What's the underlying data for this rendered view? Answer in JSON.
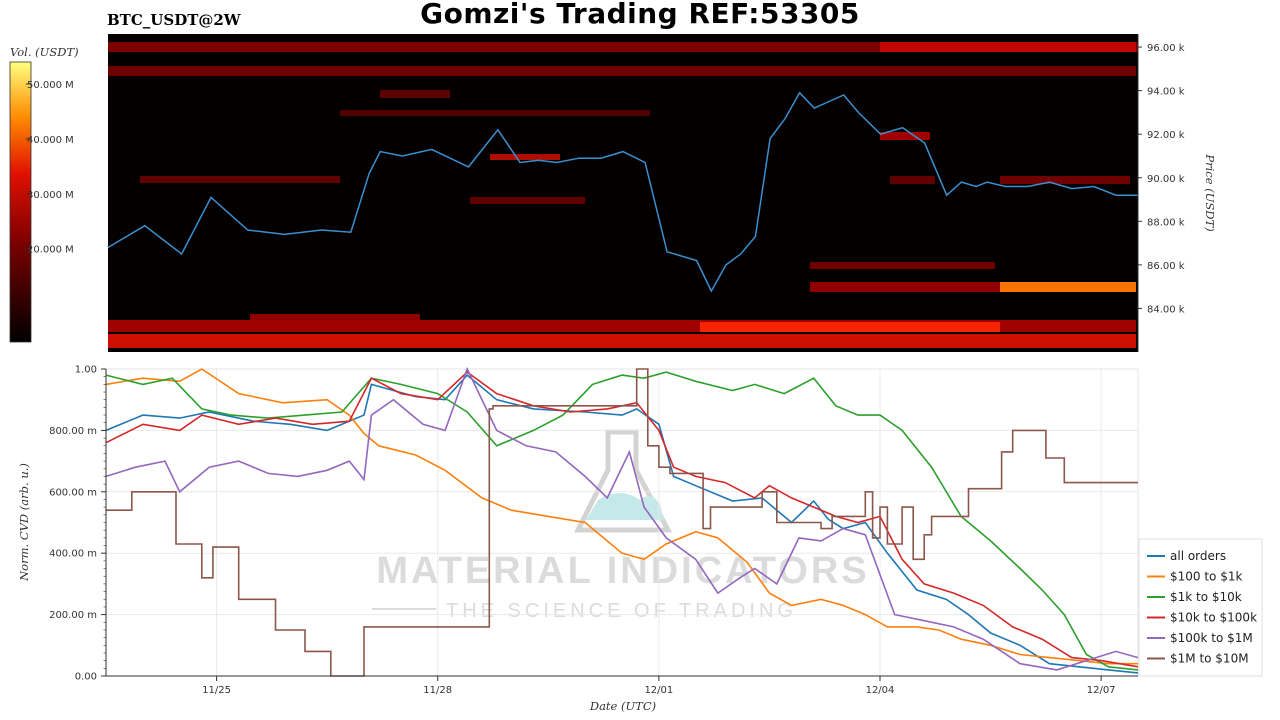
{
  "header": {
    "title": "Gomzi's Trading REF:53305",
    "subtitle": "BTC_USDT@2W"
  },
  "watermark": {
    "name": "MATERIAL INDICATORS",
    "tagline": "THE SCIENCE OF TRADING",
    "icon": "flask-icon"
  },
  "colors": {
    "all_orders": "#1f77b4",
    "r100_1k": "#ff7f0e",
    "r1k_10k": "#2ca02c",
    "r10k_100k": "#d62728",
    "r100k_1m": "#9467bd",
    "r1m_10m": "#8c564b",
    "heatmap_bg": "#050000",
    "price_line": "#3a8fd0"
  },
  "chart_data": [
    {
      "type": "heatmap",
      "title": "Gomzi's Trading REF:53305",
      "subtitle": "BTC_USDT@2W",
      "ylabel": "Price (USDT)",
      "ylim": [
        82000,
        96600
      ],
      "yticks": [
        "84.00 k",
        "86.00 k",
        "88.00 k",
        "90.00 k",
        "92.00 k",
        "94.00 k",
        "96.00 k"
      ],
      "ytick_values": [
        84000,
        86000,
        88000,
        90000,
        92000,
        94000,
        96000
      ],
      "colorbar": {
        "label": "Vol. (USDT)",
        "ticks": [
          "20.000 M",
          "30.000 M",
          "40.000 M",
          "50.000 M"
        ],
        "tick_values": [
          20,
          30,
          40,
          50
        ],
        "range": [
          3,
          54
        ]
      },
      "xlim_days": [
        0,
        14
      ],
      "price_series": {
        "name": "Price",
        "x_days": [
          0,
          0.5,
          1.0,
          1.4,
          1.9,
          2.4,
          2.9,
          3.3,
          3.55,
          3.7,
          4.0,
          4.4,
          4.9,
          5.3,
          5.6,
          5.85,
          6.1,
          6.4,
          6.7,
          7.0,
          7.3,
          7.6,
          8.0,
          8.2,
          8.4,
          8.6,
          8.8,
          9.0,
          9.2,
          9.4,
          9.6,
          9.8,
          10.0,
          10.2,
          10.5,
          10.8,
          11.1,
          11.4,
          11.6,
          11.8,
          11.95,
          12.2,
          12.5,
          12.8,
          13.1,
          13.4,
          13.7,
          14.0
        ],
        "price": [
          86800,
          87800,
          86500,
          89100,
          87600,
          87400,
          87600,
          87500,
          90200,
          91200,
          91000,
          91300,
          90500,
          92200,
          90700,
          90800,
          90700,
          90900,
          90900,
          91200,
          90700,
          86600,
          86200,
          84800,
          86000,
          86500,
          87300,
          91800,
          92700,
          93900,
          93200,
          93500,
          93800,
          93000,
          92000,
          92300,
          91600,
          89200,
          89800,
          89600,
          89800,
          89600,
          89600,
          89800,
          89500,
          89600,
          89200,
          89200
        ]
      }
    },
    {
      "type": "line",
      "xlabel": "Date (UTC)",
      "ylabel": "Norm. CVD (arb. u.)",
      "ylim": [
        0,
        1
      ],
      "xlim_days": [
        0,
        14
      ],
      "xticks": [
        "11/25",
        "11/28",
        "12/01",
        "12/04",
        "12/07"
      ],
      "xtick_days": [
        1.5,
        4.5,
        7.5,
        10.5,
        13.5
      ],
      "yticks": [
        "0.00",
        "200.00 m",
        "400.00 m",
        "600.00 m",
        "800.00 m",
        "1.00"
      ],
      "ytick_values": [
        0,
        0.2,
        0.4,
        0.6,
        0.8,
        1.0
      ],
      "legend": "right",
      "series": [
        {
          "name": "all orders",
          "color_key": "all_orders",
          "x_days": [
            0,
            0.5,
            1.0,
            1.4,
            2.0,
            2.5,
            3.0,
            3.5,
            3.6,
            4.2,
            4.6,
            4.9,
            5.3,
            5.8,
            6.5,
            7.0,
            7.2,
            7.5,
            7.7,
            8.0,
            8.5,
            8.9,
            9.3,
            9.6,
            9.8,
            10.0,
            10.3,
            10.6,
            11.0,
            11.4,
            11.7,
            12.0,
            12.4,
            12.8,
            13.2,
            13.6,
            14.0
          ],
          "values": [
            0.8,
            0.85,
            0.84,
            0.86,
            0.83,
            0.82,
            0.8,
            0.85,
            0.95,
            0.91,
            0.9,
            0.98,
            0.9,
            0.87,
            0.86,
            0.85,
            0.87,
            0.82,
            0.65,
            0.62,
            0.57,
            0.58,
            0.5,
            0.57,
            0.51,
            0.48,
            0.5,
            0.4,
            0.28,
            0.25,
            0.2,
            0.14,
            0.1,
            0.04,
            0.03,
            0.02,
            0.01
          ]
        },
        {
          "name": "$100 to $1k",
          "color_key": "r100_1k",
          "x_days": [
            0,
            0.5,
            1.0,
            1.3,
            1.8,
            2.4,
            3.0,
            3.3,
            3.5,
            3.7,
            4.2,
            4.6,
            5.1,
            5.5,
            6.0,
            6.5,
            7.0,
            7.3,
            7.6,
            8.0,
            8.3,
            8.7,
            9.0,
            9.3,
            9.7,
            10.0,
            10.3,
            10.6,
            11.0,
            11.3,
            11.6,
            12.0,
            12.4,
            12.8,
            13.2,
            13.6,
            14.0
          ],
          "values": [
            0.95,
            0.97,
            0.96,
            1.0,
            0.92,
            0.89,
            0.9,
            0.85,
            0.79,
            0.75,
            0.72,
            0.67,
            0.58,
            0.54,
            0.52,
            0.5,
            0.4,
            0.38,
            0.43,
            0.47,
            0.45,
            0.37,
            0.27,
            0.23,
            0.25,
            0.23,
            0.2,
            0.16,
            0.16,
            0.15,
            0.12,
            0.1,
            0.07,
            0.06,
            0.05,
            0.04,
            0.04
          ]
        },
        {
          "name": "$1k to $10k",
          "color_key": "r1k_10k",
          "x_days": [
            0,
            0.5,
            0.9,
            1.3,
            1.7,
            2.2,
            2.7,
            3.2,
            3.6,
            4.0,
            4.5,
            4.9,
            5.3,
            5.8,
            6.2,
            6.6,
            7.0,
            7.3,
            7.6,
            8.0,
            8.5,
            8.8,
            9.2,
            9.6,
            9.9,
            10.2,
            10.5,
            10.8,
            11.2,
            11.6,
            12.0,
            12.4,
            12.7,
            13.0,
            13.3,
            13.6,
            14.0
          ],
          "values": [
            0.98,
            0.95,
            0.97,
            0.87,
            0.85,
            0.84,
            0.85,
            0.86,
            0.97,
            0.95,
            0.92,
            0.86,
            0.75,
            0.8,
            0.85,
            0.95,
            0.98,
            0.97,
            0.99,
            0.96,
            0.93,
            0.95,
            0.92,
            0.97,
            0.88,
            0.85,
            0.85,
            0.8,
            0.68,
            0.52,
            0.44,
            0.35,
            0.28,
            0.2,
            0.07,
            0.03,
            0.02
          ]
        },
        {
          "name": "$10k to $100k",
          "color_key": "r10k_100k",
          "x_days": [
            0,
            0.5,
            1.0,
            1.3,
            1.8,
            2.3,
            2.8,
            3.3,
            3.6,
            4.0,
            4.5,
            4.9,
            5.3,
            5.8,
            6.3,
            6.8,
            7.2,
            7.5,
            7.7,
            8.0,
            8.4,
            8.8,
            9.0,
            9.3,
            9.6,
            9.9,
            10.2,
            10.5,
            10.8,
            11.1,
            11.5,
            11.9,
            12.3,
            12.7,
            13.1,
            13.5,
            14.0
          ],
          "values": [
            0.76,
            0.82,
            0.8,
            0.85,
            0.82,
            0.84,
            0.82,
            0.83,
            0.97,
            0.92,
            0.9,
            0.99,
            0.92,
            0.88,
            0.86,
            0.87,
            0.89,
            0.8,
            0.68,
            0.65,
            0.63,
            0.58,
            0.62,
            0.58,
            0.55,
            0.52,
            0.5,
            0.52,
            0.38,
            0.3,
            0.27,
            0.23,
            0.16,
            0.12,
            0.06,
            0.05,
            0.03
          ]
        },
        {
          "name": "$100k to $1M",
          "color_key": "r100k_1m",
          "x_days": [
            0,
            0.4,
            0.8,
            1.0,
            1.4,
            1.8,
            2.2,
            2.6,
            3.0,
            3.3,
            3.5,
            3.6,
            3.9,
            4.3,
            4.6,
            4.9,
            5.3,
            5.7,
            6.1,
            6.5,
            6.8,
            7.1,
            7.3,
            7.6,
            8.0,
            8.3,
            8.6,
            8.8,
            9.1,
            9.4,
            9.7,
            10.0,
            10.3,
            10.7,
            11.1,
            11.5,
            11.9,
            12.4,
            12.9,
            13.3,
            13.7,
            14.0
          ],
          "values": [
            0.65,
            0.68,
            0.7,
            0.6,
            0.68,
            0.7,
            0.66,
            0.65,
            0.67,
            0.7,
            0.64,
            0.85,
            0.9,
            0.82,
            0.8,
            1.0,
            0.8,
            0.75,
            0.73,
            0.65,
            0.58,
            0.73,
            0.55,
            0.45,
            0.38,
            0.27,
            0.32,
            0.35,
            0.3,
            0.45,
            0.44,
            0.48,
            0.46,
            0.2,
            0.18,
            0.16,
            0.12,
            0.04,
            0.02,
            0.05,
            0.08,
            0.06
          ]
        },
        {
          "name": "$1M to $10M",
          "color_key": "r1m_10m",
          "steps": true,
          "x_days": [
            0,
            0.35,
            0.95,
            1.3,
            1.45,
            1.8,
            2.3,
            2.7,
            3.05,
            3.4,
            3.5,
            5.15,
            5.2,
            5.25,
            7.05,
            7.2,
            7.35,
            7.5,
            7.65,
            8.1,
            8.2,
            8.9,
            9.1,
            9.7,
            9.85,
            10.3,
            10.4,
            10.5,
            10.6,
            10.8,
            10.95,
            11.1,
            11.2,
            11.55,
            11.7,
            11.95,
            12.15,
            12.3,
            12.55,
            12.75,
            13.0,
            14.0
          ],
          "values": [
            0.54,
            0.6,
            0.43,
            0.32,
            0.42,
            0.25,
            0.15,
            0.08,
            0.0,
            0.0,
            0.16,
            0.16,
            0.87,
            0.88,
            0.88,
            1.0,
            0.75,
            0.68,
            0.66,
            0.48,
            0.55,
            0.6,
            0.5,
            0.48,
            0.52,
            0.6,
            0.45,
            0.55,
            0.43,
            0.55,
            0.38,
            0.46,
            0.52,
            0.52,
            0.61,
            0.61,
            0.73,
            0.8,
            0.8,
            0.71,
            0.63,
            0.63
          ]
        }
      ]
    }
  ]
}
